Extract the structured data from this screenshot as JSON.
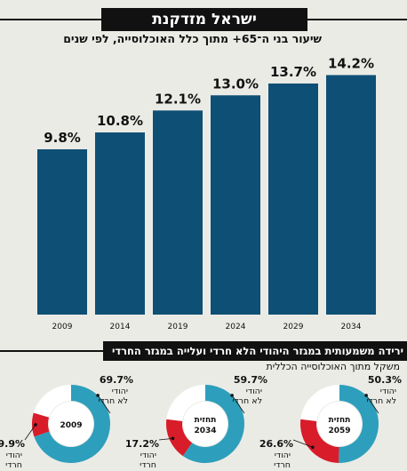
{
  "header": {
    "title": "ישראל מזדקנת",
    "subtitle": "שיעור בני ה־65+ מתוך כלל האוכלוסייה, לפי שנים"
  },
  "section2": {
    "title": "ירידה משמעותית במגזר היהודי הלא חרדי ועלייה במגזר החרדי",
    "subtitle": "משקל מתוך האוכלוסייה הכללית"
  },
  "colors": {
    "bar": "#0e4f75",
    "teal": "#2d9fbc",
    "red": "#d81c2a",
    "white": "#ffffff"
  },
  "chart_data": [
    {
      "type": "bar",
      "categories": [
        "2009",
        "2014",
        "2019",
        "2024",
        "2029",
        "2034"
      ],
      "values": [
        9.8,
        10.8,
        12.1,
        13.0,
        13.7,
        14.2
      ],
      "value_labels": [
        "9.8%",
        "10.8%",
        "12.1%",
        "13.0%",
        "13.7%",
        "14.2%"
      ],
      "ylim": [
        0,
        16
      ]
    },
    {
      "type": "pie",
      "center_label": [
        "2009"
      ],
      "slices": [
        {
          "name": "יהודי לא חרדי",
          "value": 69.7,
          "label": "69.7%",
          "color": "teal"
        },
        {
          "name": "יהודי חרדי",
          "value": 9.9,
          "label": "9.9%",
          "color": "red"
        },
        {
          "name": "",
          "value": 20.4,
          "color": "white"
        }
      ],
      "labels": {
        "big_label": "69.7%",
        "big_name": [
          "יהודי",
          "לא חרדי"
        ],
        "small_label": "9.9%",
        "small_name": [
          "יהודי",
          "חרדי"
        ]
      }
    },
    {
      "type": "pie",
      "center_label": [
        "תחזית",
        "2034"
      ],
      "slices": [
        {
          "name": "יהודי לא חרדי",
          "value": 59.7,
          "label": "59.7%",
          "color": "teal"
        },
        {
          "name": "יהודי חרדי",
          "value": 17.2,
          "label": "17.2%",
          "color": "red"
        },
        {
          "name": "",
          "value": 23.1,
          "color": "white"
        }
      ],
      "labels": {
        "big_label": "59.7%",
        "big_name": [
          "יהודי",
          "לא חרדי"
        ],
        "small_label": "17.2%",
        "small_name": [
          "יהודי",
          "חרדי"
        ]
      }
    },
    {
      "type": "pie",
      "center_label": [
        "תחזית",
        "2059"
      ],
      "slices": [
        {
          "name": "יהודי לא חרדי",
          "value": 50.3,
          "label": "50.3%",
          "color": "teal"
        },
        {
          "name": "יהודי חרדי",
          "value": 26.6,
          "label": "26.6%",
          "color": "red"
        },
        {
          "name": "",
          "value": 23.1,
          "color": "white"
        }
      ],
      "labels": {
        "big_label": "50.3%",
        "big_name": [
          "יהודי",
          "לא חרדי"
        ],
        "small_label": "26.6%",
        "small_name": [
          "יהודי",
          "חרדי"
        ]
      }
    }
  ]
}
